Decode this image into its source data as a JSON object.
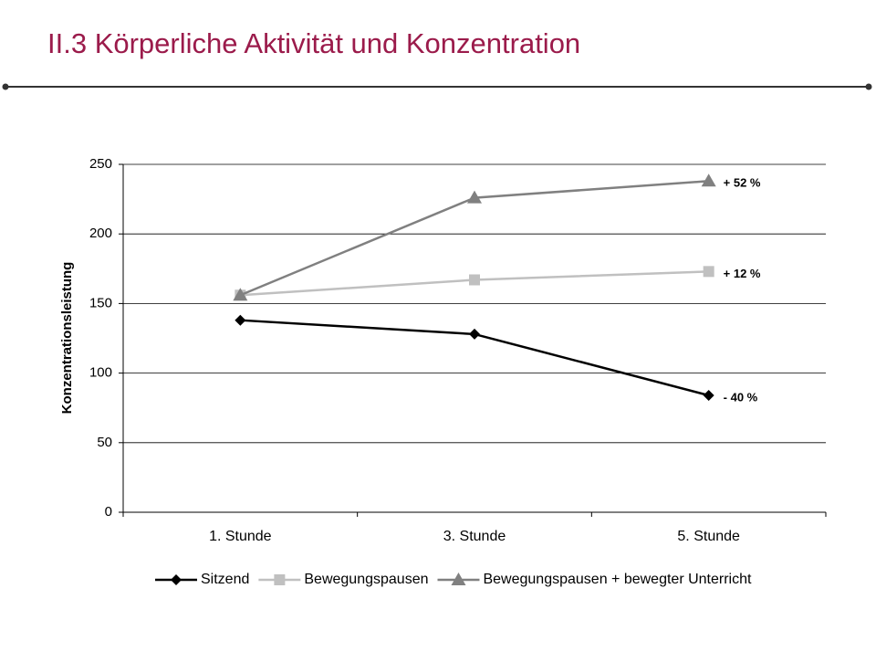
{
  "header": {
    "title": "II.3 Körperliche Aktivität und Konzentration"
  },
  "chart_data": {
    "type": "line",
    "y_label": "Konzentrationsleistung",
    "categories": [
      "1. Stunde",
      "3. Stunde",
      "5. Stunde"
    ],
    "series": [
      {
        "name": "Sitzend",
        "color": "#000000",
        "marker": "diamond",
        "values": [
          138,
          128,
          84
        ]
      },
      {
        "name": "Bewegungspausen",
        "color": "#c0c0c0",
        "marker": "square",
        "values": [
          156,
          167,
          173
        ]
      },
      {
        "name": "Bewegungspausen + bewegter Unterricht",
        "color": "#808080",
        "marker": "triangle",
        "values": [
          156,
          226,
          238
        ]
      }
    ],
    "annotations": [
      "- 40 %",
      "+ 12 %",
      "+ 52 %"
    ],
    "ylim": [
      0,
      250
    ],
    "yticks": [
      0,
      50,
      100,
      150,
      200,
      250
    ],
    "grid": true,
    "legend": "bottom"
  }
}
